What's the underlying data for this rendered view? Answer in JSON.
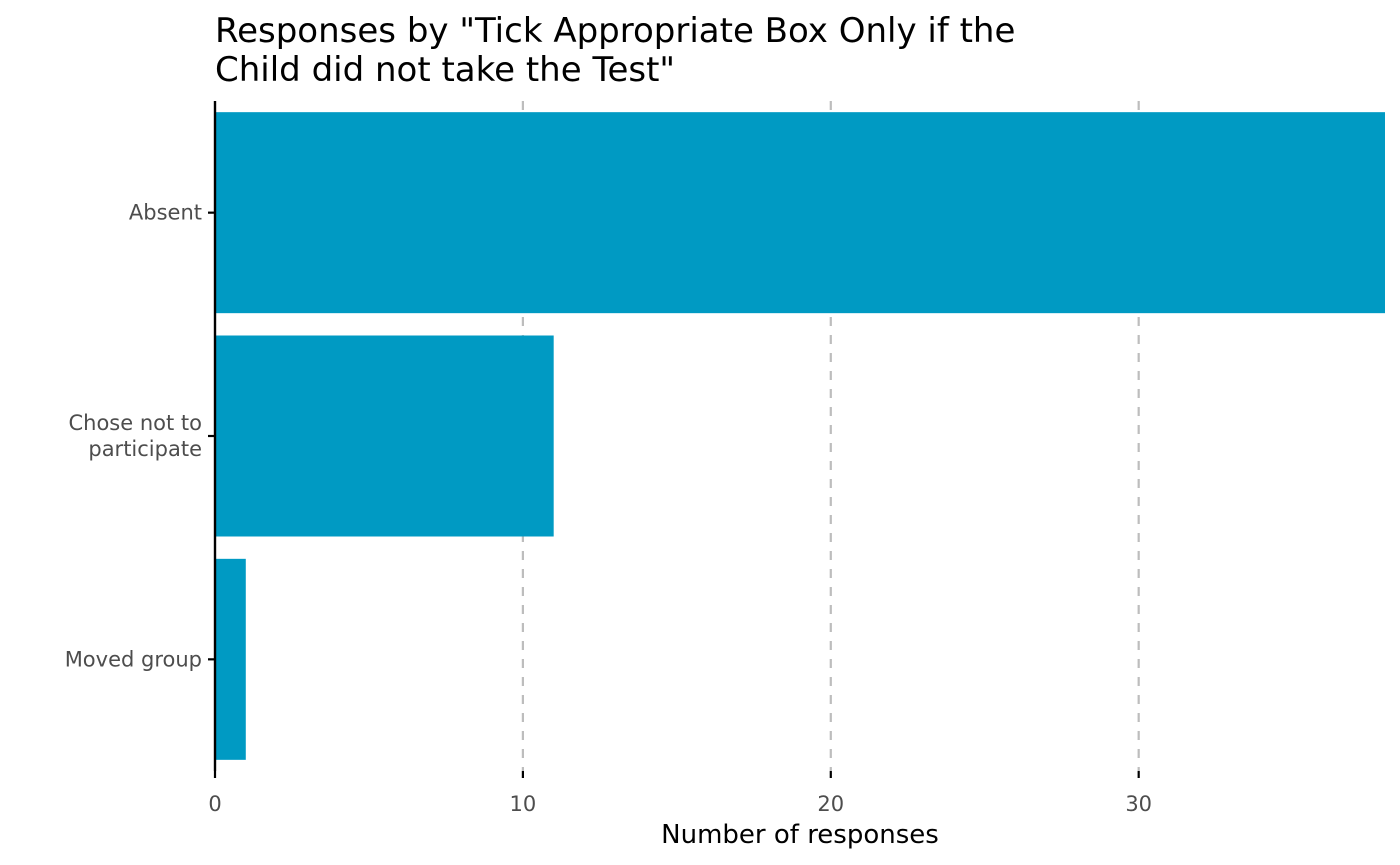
{
  "chart_data": {
    "type": "bar",
    "orientation": "horizontal",
    "title_lines": [
      "Responses by \"Tick Appropriate Box Only if the",
      "Child did not take the Test\""
    ],
    "categories": [
      {
        "label_lines": [
          "Absent"
        ],
        "value": 38
      },
      {
        "label_lines": [
          "Chose not to",
          "participate"
        ],
        "value": 11
      },
      {
        "label_lines": [
          "Moved group"
        ],
        "value": 1
      }
    ],
    "xlabel": "Number of responses",
    "ylabel": "",
    "xlim": [
      0,
      38
    ],
    "xticks": [
      0,
      10,
      20,
      30
    ],
    "grid": "vertical dashed",
    "colors": {
      "bar": "#009ac3",
      "grid": "#bdbdbd",
      "axis": "#000000"
    }
  }
}
